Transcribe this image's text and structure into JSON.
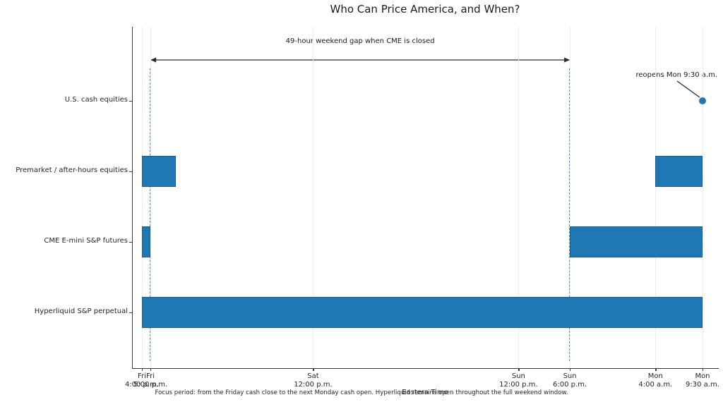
{
  "figure": {
    "title": "Who Can Price America, and When?",
    "xlabel": "Eastern Time",
    "caption": "Focus period: from the Friday cash close to the next Monday cash open. Hyperliquid remains open throughout the full weekend window."
  },
  "chart_data": {
    "type": "bar",
    "subtype": "horizontal-broken-bar-timeline",
    "title": "Who Can Price America, and When?",
    "xlabel": "Eastern Time",
    "x_unit": "hours after Fri 4:00 p.m. Eastern Time",
    "xlim_hours": [
      -1.1,
      67.4
    ],
    "grid": true,
    "x_ticks": [
      {
        "day": "Fri",
        "time": "4:00 p.m.",
        "hour": 0
      },
      {
        "day": "Fri",
        "time": "5:00 p.m.",
        "hour": 1
      },
      {
        "day": "Sat",
        "time": "12:00 p.m.",
        "hour": 20
      },
      {
        "day": "Sun",
        "time": "12:00 p.m.",
        "hour": 44
      },
      {
        "day": "Sun",
        "time": "6:00 p.m.",
        "hour": 50
      },
      {
        "day": "Mon",
        "time": "4:00 a.m.",
        "hour": 60
      },
      {
        "day": "Mon",
        "time": "9:30 a.m.",
        "hour": 65.5
      }
    ],
    "rows": [
      {
        "label": "U.S. cash equities",
        "intervals": [],
        "marker": {
          "hour": 65.5,
          "annotation": "reopens Mon 9:30 a.m."
        }
      },
      {
        "label": "Premarket / after-hours equities",
        "intervals": [
          [
            0,
            4
          ],
          [
            60,
            65.5
          ]
        ]
      },
      {
        "label": "CME E-mini S&P futures",
        "intervals": [
          [
            0,
            1
          ],
          [
            50,
            65.5
          ]
        ]
      },
      {
        "label": "Hyperliquid S&P perpetual",
        "intervals": [
          [
            0,
            65.5
          ]
        ]
      }
    ],
    "gap_annotation": {
      "label": "49-hour weekend gap when CME is closed",
      "from_hour": 1,
      "to_hour": 50
    },
    "caption": "Focus period: from the Friday cash close to the next Monday cash open. Hyperliquid remains open throughout the full weekend window.",
    "colors": {
      "bar": "#1f77b4",
      "marker_dot": "#1f77b4",
      "dashed_guide": "#4a92c3",
      "gridline": "#ececec",
      "arrow": "#2b2b2b",
      "text": "#262626"
    }
  }
}
